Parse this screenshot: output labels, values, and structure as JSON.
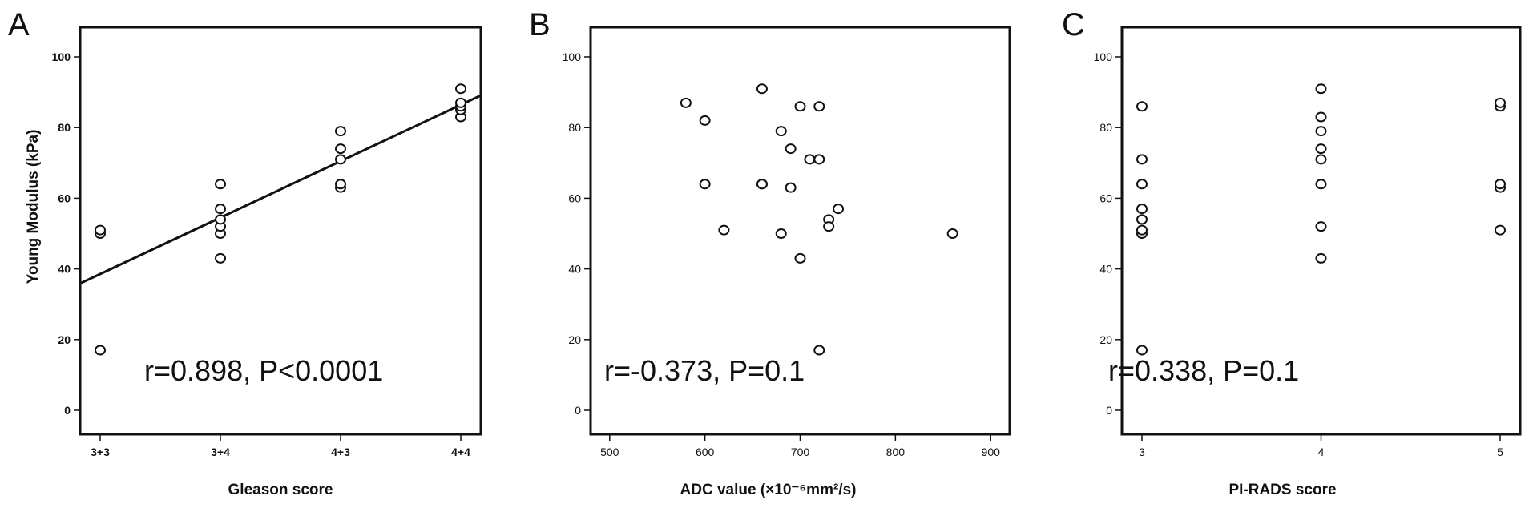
{
  "chart_data": [
    {
      "panel": "A",
      "type": "scatter",
      "xlabel": "Gleason score",
      "ylabel": "Young Modulus (kPa)",
      "x_categories": [
        "3+3",
        "3+4",
        "4+3",
        "4+4"
      ],
      "ylim": [
        0,
        100
      ],
      "yticks": [
        0,
        20,
        40,
        60,
        80,
        100
      ],
      "points": [
        {
          "x": "3+3",
          "y": 17
        },
        {
          "x": "3+3",
          "y": 50
        },
        {
          "x": "3+3",
          "y": 51
        },
        {
          "x": "3+4",
          "y": 43
        },
        {
          "x": "3+4",
          "y": 50
        },
        {
          "x": "3+4",
          "y": 52
        },
        {
          "x": "3+4",
          "y": 54
        },
        {
          "x": "3+4",
          "y": 57
        },
        {
          "x": "3+4",
          "y": 64
        },
        {
          "x": "4+3",
          "y": 63
        },
        {
          "x": "4+3",
          "y": 64
        },
        {
          "x": "4+3",
          "y": 71
        },
        {
          "x": "4+3",
          "y": 74
        },
        {
          "x": "4+3",
          "y": 79
        },
        {
          "x": "4+4",
          "y": 83
        },
        {
          "x": "4+4",
          "y": 85
        },
        {
          "x": "4+4",
          "y": 86
        },
        {
          "x": "4+4",
          "y": 87
        },
        {
          "x": "4+4",
          "y": 91
        }
      ],
      "fit_line": {
        "y_at_left_edge": 36,
        "y_at_right_edge": 89
      },
      "annotation": "r=0.898, P<0.0001"
    },
    {
      "panel": "B",
      "type": "scatter",
      "xlabel": "ADC value (×10⁻⁶mm²/s)",
      "ylabel": "",
      "xlim": [
        480,
        920
      ],
      "xticks": [
        500,
        600,
        700,
        800,
        900
      ],
      "ylim": [
        0,
        100
      ],
      "yticks": [
        0,
        20,
        40,
        60,
        80,
        100
      ],
      "points": [
        {
          "x": 580,
          "y": 87
        },
        {
          "x": 600,
          "y": 82
        },
        {
          "x": 600,
          "y": 64
        },
        {
          "x": 620,
          "y": 51
        },
        {
          "x": 660,
          "y": 91
        },
        {
          "x": 660,
          "y": 64
        },
        {
          "x": 660,
          "y": 64
        },
        {
          "x": 680,
          "y": 79
        },
        {
          "x": 680,
          "y": 50
        },
        {
          "x": 690,
          "y": 74
        },
        {
          "x": 690,
          "y": 63
        },
        {
          "x": 700,
          "y": 86
        },
        {
          "x": 700,
          "y": 43
        },
        {
          "x": 710,
          "y": 71
        },
        {
          "x": 720,
          "y": 86
        },
        {
          "x": 720,
          "y": 71
        },
        {
          "x": 720,
          "y": 17
        },
        {
          "x": 730,
          "y": 54
        },
        {
          "x": 730,
          "y": 52
        },
        {
          "x": 740,
          "y": 57
        },
        {
          "x": 860,
          "y": 50
        }
      ],
      "annotation": "r=-0.373, P=0.1"
    },
    {
      "panel": "C",
      "type": "scatter",
      "xlabel": "PI-RADS score",
      "ylabel": "",
      "x_categories": [
        "3",
        "4",
        "5"
      ],
      "ylim": [
        0,
        100
      ],
      "yticks": [
        0,
        20,
        40,
        60,
        80,
        100
      ],
      "points": [
        {
          "x": "3",
          "y": 17
        },
        {
          "x": "3",
          "y": 50
        },
        {
          "x": "3",
          "y": 51
        },
        {
          "x": "3",
          "y": 54
        },
        {
          "x": "3",
          "y": 57
        },
        {
          "x": "3",
          "y": 64
        },
        {
          "x": "3",
          "y": 71
        },
        {
          "x": "3",
          "y": 86
        },
        {
          "x": "4",
          "y": 43
        },
        {
          "x": "4",
          "y": 52
        },
        {
          "x": "4",
          "y": 64
        },
        {
          "x": "4",
          "y": 71
        },
        {
          "x": "4",
          "y": 74
        },
        {
          "x": "4",
          "y": 79
        },
        {
          "x": "4",
          "y": 83
        },
        {
          "x": "4",
          "y": 91
        },
        {
          "x": "5",
          "y": 51
        },
        {
          "x": "5",
          "y": 63
        },
        {
          "x": "5",
          "y": 64
        },
        {
          "x": "5",
          "y": 86
        },
        {
          "x": "5",
          "y": 87
        }
      ],
      "annotation": "r=0.338, P=0.1"
    }
  ]
}
